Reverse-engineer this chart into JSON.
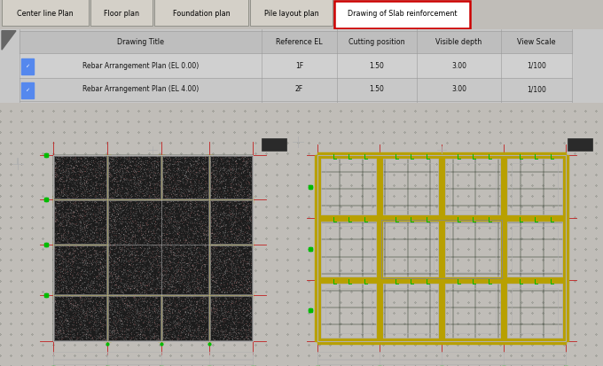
{
  "tabs": [
    "Center line Plan",
    "Floor plan",
    "Foundation plan",
    "Pile layout plan",
    "Drawing of Slab reinforcement"
  ],
  "active_tab": "Drawing of Slab reinforcement",
  "tab_bg": "#d4d0c8",
  "active_tab_bg": "#ffffff",
  "active_tab_border": "#cc0000",
  "header_bg": "#c8c8c8",
  "row_bg1": "#dcdcdc",
  "row_bg2": "#e8e8e8",
  "table_headers": [
    "Drawing Title",
    "Reference EL",
    "Cutting position",
    "Visible depth",
    "View Scale"
  ],
  "table_rows": [
    [
      "Rebar Arrangement Plan (EL 0.00)",
      "1F",
      "1.50",
      "3.00",
      "1/100"
    ],
    [
      "Rebar Arrangement Plan (EL 4.00)",
      "2F",
      "1.50",
      "3.00",
      "1/100"
    ]
  ],
  "cad_bg": "#080808",
  "cad_grid_color": "#111811",
  "cad_yellow": "#b8a000",
  "cad_red": "#c02020",
  "cad_white": "#b0b0b0",
  "cad_green": "#00bb00",
  "cad_light_green": "#44cc44",
  "figure_width": 6.8,
  "figure_height": 4.13,
  "dpi": 100
}
